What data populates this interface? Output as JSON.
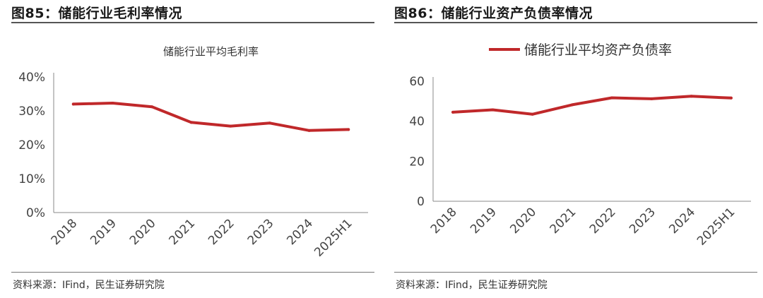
{
  "left_panel": {
    "figure_title": "图85：储能行业毛利率情况",
    "source": "资料来源：IFind，民生证券研究院"
  },
  "right_panel": {
    "figure_title": "图86：储能行业资产负债率情况",
    "source": "资料来源：IFind，民生证券研究院"
  },
  "colors": {
    "series": "#c0282a",
    "axis": "#8a8a8a",
    "rule": "#555555"
  },
  "chart_data": [
    {
      "type": "line",
      "title": "储能行业平均毛利率",
      "categories": [
        "2018",
        "2019",
        "2020",
        "2021",
        "2022",
        "2023",
        "2024",
        "2025H1"
      ],
      "series": [
        {
          "name": "储能行业平均毛利率",
          "values": [
            32.0,
            32.3,
            31.2,
            26.6,
            25.5,
            26.4,
            24.2,
            24.5
          ]
        }
      ],
      "ylim": [
        0,
        40
      ],
      "yticks": [
        0,
        10,
        20,
        30,
        40
      ],
      "ytick_labels": [
        "0%",
        "10%",
        "20%",
        "30%",
        "40%"
      ],
      "grid": false,
      "legend": "none"
    },
    {
      "type": "line",
      "title": "",
      "categories": [
        "2018",
        "2019",
        "2020",
        "2021",
        "2022",
        "2023",
        "2024",
        "2025H1"
      ],
      "series": [
        {
          "name": "储能行业平均资产负债率",
          "values": [
            44.5,
            45.7,
            43.5,
            48.2,
            51.7,
            51.2,
            52.5,
            51.6
          ]
        }
      ],
      "ylim": [
        0,
        60
      ],
      "yticks": [
        0,
        20,
        40,
        60
      ],
      "ytick_labels": [
        "0",
        "20",
        "40",
        "60"
      ],
      "grid": false,
      "legend": "top"
    }
  ]
}
